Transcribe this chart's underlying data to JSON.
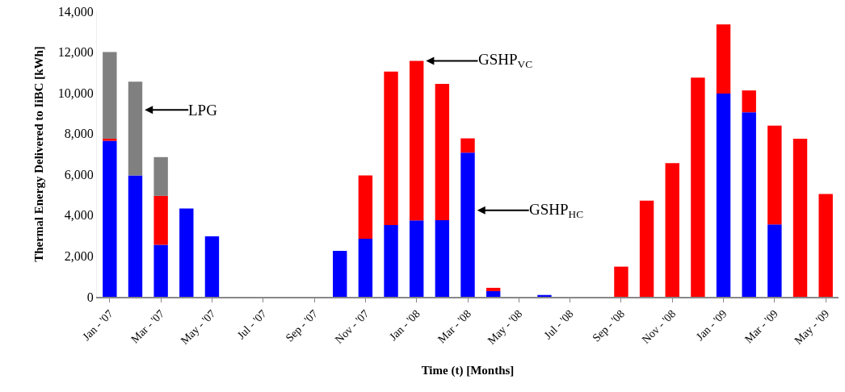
{
  "chart_data": {
    "type": "bar",
    "stacked": true,
    "xlabel": "Time (t) [Months]",
    "ylabel": "Thermal Energy Delivered to IiBC [kWh]",
    "categories": [
      "Jan - '07",
      null,
      "Mar - '07",
      null,
      "May - '07",
      null,
      "Jul - '07",
      null,
      "Sep - '07",
      null,
      "Nov - '07",
      null,
      "Jan - '08",
      null,
      "Mar - '08",
      null,
      "May - '08",
      null,
      "Jul - '08",
      null,
      "Sep - '08",
      null,
      "Nov - '08",
      null,
      "Jan - '09",
      null,
      "Mar - '09",
      null,
      "May - '09"
    ],
    "series": [
      {
        "name": "GSHP$_{HC}$",
        "color": "#0000ff",
        "values": [
          7650,
          5950,
          2550,
          4330,
          2970,
          0,
          0,
          0,
          0,
          2250,
          2850,
          3520,
          3750,
          3760,
          7070,
          280,
          0,
          90,
          0,
          0,
          0,
          0,
          0,
          0,
          9970,
          9050,
          3550,
          0,
          0
        ]
      },
      {
        "name": "GSHP$_{VC}$",
        "color": "#ff0000",
        "values": [
          100,
          0,
          2400,
          0,
          0,
          0,
          0,
          0,
          0,
          0,
          3100,
          7520,
          7820,
          6680,
          700,
          160,
          0,
          0,
          0,
          0,
          1480,
          4720,
          6560,
          10750,
          3390,
          1070,
          4840,
          7750,
          5040
        ]
      },
      {
        "name": "LPG",
        "color": "#808080",
        "values": [
          4250,
          4600,
          1900,
          0,
          0,
          0,
          0,
          0,
          0,
          0,
          0,
          0,
          0,
          0,
          0,
          0,
          0,
          0,
          0,
          0,
          0,
          0,
          0,
          0,
          0,
          0,
          0,
          0,
          0
        ]
      }
    ],
    "ylim": [
      0,
      14000
    ],
    "yticks": [
      0,
      {
        "value": 2000,
        "label": "2,000"
      },
      {
        "value": 4000,
        "label": "4,000"
      },
      {
        "value": 6000,
        "label": "6,000"
      },
      {
        "value": 8000,
        "label": "8,000"
      },
      {
        "value": 10000,
        "label": "10,000"
      },
      {
        "value": 12000,
        "label": "12,000"
      },
      {
        "value": 14000,
        "label": "14,000"
      }
    ],
    "grid": false,
    "legend": false
  }
}
